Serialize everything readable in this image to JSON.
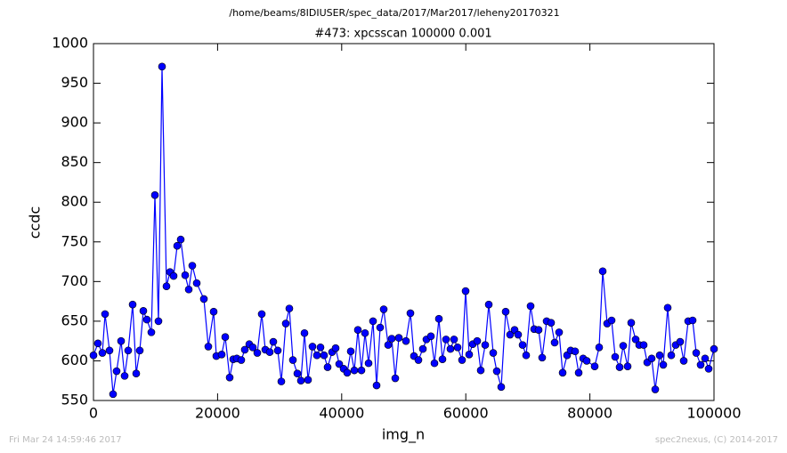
{
  "chart_data": {
    "type": "line",
    "suptitle": "/home/beams/8IDIUSER/spec_data/2017/Mar2017/leheny20170321",
    "title": "#473: xpcsscan 100000 0.001",
    "xlabel": "img_n",
    "ylabel": "ccdc",
    "xlim": [
      0,
      100000
    ],
    "ylim": [
      550,
      1000
    ],
    "xticks": [
      0,
      20000,
      40000,
      60000,
      80000,
      100000
    ],
    "yticks": [
      550,
      600,
      650,
      700,
      750,
      800,
      850,
      900,
      950,
      1000
    ],
    "grid": false,
    "marker": "circle",
    "series": [
      {
        "name": "ccdc",
        "color": "#0000ff",
        "x": [
          0,
          717,
          1435,
          1865,
          2582,
          3156,
          3730,
          4448,
          5022,
          5595,
          6313,
          6887,
          7461,
          8034,
          8608,
          9326,
          9900,
          10473,
          11047,
          11765,
          12339,
          12912,
          13486,
          14060,
          14778,
          15351,
          15925,
          16643,
          17791,
          18508,
          19369,
          19799,
          20660,
          21234,
          21951,
          22525,
          23099,
          23816,
          24390,
          25108,
          25681,
          26399,
          27116,
          27690,
          28407,
          28981,
          29699,
          30273,
          30990,
          31564,
          32138,
          32855,
          33429,
          34003,
          34577,
          35294,
          36011,
          36585,
          37159,
          37733,
          38451,
          39024,
          39598,
          40316,
          40890,
          41463,
          42037,
          42611,
          43185,
          43759,
          44333,
          45050,
          45624,
          46198,
          46772,
          47489,
          48063,
          48637,
          49211,
          50359,
          51076,
          51650,
          52367,
          53085,
          53658,
          54376,
          54950,
          55667,
          56241,
          56815,
          57532,
          58106,
          58680,
          59397,
          59971,
          60545,
          61119,
          61836,
          62410,
          63127,
          63702,
          64419,
          64993,
          65710,
          66428,
          67145,
          67862,
          68436,
          69154,
          69727,
          70445,
          71019,
          71736,
          72310,
          73027,
          73745,
          74319,
          75036,
          75610,
          76327,
          76901,
          77618,
          78192,
          78910,
          79483,
          80775,
          81492,
          82066,
          82783,
          83501,
          84074,
          84792,
          85366,
          86083,
          86657,
          87374,
          87948,
          88666,
          89240,
          89957,
          90531,
          91248,
          91822,
          92539,
          93113,
          93831,
          94548,
          95122,
          95839,
          96557,
          97131,
          97848,
          98565,
          99139,
          100000
        ],
        "values": [
          607,
          622,
          610,
          659,
          613,
          558,
          587,
          625,
          581,
          613,
          671,
          584,
          613,
          663,
          652,
          636,
          809,
          650,
          971,
          694,
          712,
          707,
          745,
          753,
          708,
          690,
          720,
          698,
          678,
          618,
          662,
          606,
          608,
          630,
          579,
          602,
          603,
          601,
          614,
          621,
          617,
          610,
          659,
          614,
          611,
          624,
          613,
          574,
          647,
          666,
          601,
          584,
          575,
          635,
          576,
          618,
          607,
          617,
          607,
          592,
          611,
          616,
          596,
          590,
          585,
          612,
          588,
          639,
          588,
          635,
          597,
          650,
          569,
          642,
          665,
          620,
          628,
          578,
          629,
          625,
          660,
          606,
          601,
          615,
          627,
          631,
          597,
          653,
          602,
          627,
          615,
          627,
          617,
          601,
          688,
          608,
          621,
          625,
          588,
          620,
          671,
          610,
          587,
          567,
          662,
          633,
          639,
          633,
          620,
          607,
          669,
          640,
          639,
          604,
          650,
          648,
          623,
          636,
          585,
          607,
          613,
          612,
          585,
          603,
          600,
          593,
          617,
          713,
          647,
          651,
          605,
          592,
          619,
          593,
          648,
          627,
          620,
          620,
          598,
          603,
          564,
          607,
          595,
          667,
          607,
          620,
          624,
          600,
          650,
          651,
          610,
          595,
          603,
          590,
          615
        ]
      }
    ]
  },
  "footer": {
    "left": "Fri Mar 24 14:59:46 2017",
    "right": "spec2nexus, (C) 2014-2017"
  }
}
